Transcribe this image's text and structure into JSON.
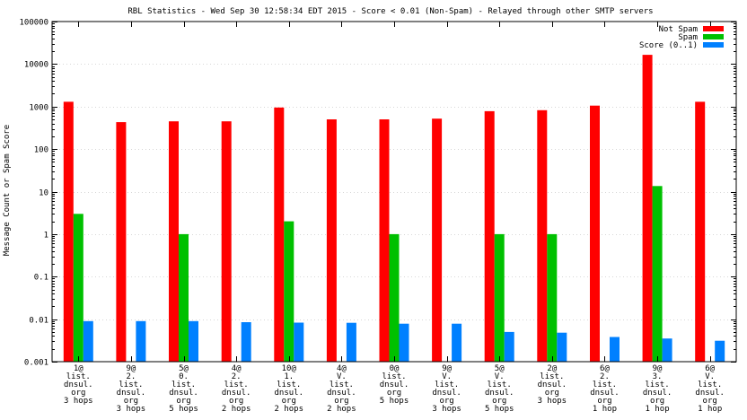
{
  "chart_data": {
    "type": "bar",
    "title": "RBL Statistics - Wed Sep 30 12:58:34 EDT 2015 - Score < 0.01 (Non-Spam) - Relayed through other SMTP servers",
    "xlabel": "",
    "ylabel": "Message Count or Spam Score",
    "yscale": "log",
    "ylim": [
      0.001,
      100000
    ],
    "y_ticks": [
      "100000",
      "10000",
      "1000",
      "100",
      "10",
      "1",
      "0.1",
      "0.01",
      "0.001"
    ],
    "y_tick_values": [
      100000,
      10000,
      1000,
      100,
      10,
      1,
      0.1,
      0.01,
      0.001
    ],
    "legend_position": "top-right",
    "categories": [
      [
        "1@",
        "list.",
        "dnsul.",
        "org",
        "3 hops"
      ],
      [
        "9@",
        "2.",
        "list.",
        "dnsul.",
        "org",
        "3 hops"
      ],
      [
        "5@",
        "0.",
        "list.",
        "dnsul.",
        "org",
        "5 hops"
      ],
      [
        "4@",
        "2.",
        "list.",
        "dnsul.",
        "org",
        "2 hops"
      ],
      [
        "10@",
        "1.",
        "list.",
        "dnsul.",
        "org",
        "2 hops"
      ],
      [
        "4@",
        "V.",
        "list.",
        "dnsul.",
        "org",
        "2 hops"
      ],
      [
        "0@",
        "list.",
        "dnsul.",
        "org",
        "5 hops"
      ],
      [
        "9@",
        "V.",
        "list.",
        "dnsul.",
        "org",
        "3 hops"
      ],
      [
        "5@",
        "V.",
        "list.",
        "dnsul.",
        "org",
        "5 hops"
      ],
      [
        "2@",
        "list.",
        "dnsul.",
        "org",
        "3 hops"
      ],
      [
        "6@",
        "2.",
        "list.",
        "dnsul.",
        "org",
        "1 hop"
      ],
      [
        "9@",
        "3.",
        "list.",
        "dnsul.",
        "org",
        "1 hop"
      ],
      [
        "6@",
        "V.",
        "list.",
        "dnsul.",
        "org",
        "1 hop"
      ]
    ],
    "series": [
      {
        "name": "Not Spam",
        "color": "#ff0000",
        "values": [
          1300,
          430,
          450,
          450,
          950,
          500,
          500,
          520,
          780,
          820,
          1050,
          16500,
          1300
        ]
      },
      {
        "name": "Spam",
        "color": "#00c000",
        "values": [
          3,
          null,
          1,
          null,
          2,
          null,
          1,
          null,
          1,
          1,
          null,
          13.5,
          null
        ]
      },
      {
        "name": "Score (0..1)",
        "color": "#0080ff",
        "values": [
          0.009,
          0.009,
          0.009,
          0.0085,
          0.0083,
          0.0082,
          0.0078,
          0.0078,
          0.005,
          0.0048,
          0.0038,
          0.0035,
          0.0031
        ]
      }
    ]
  }
}
